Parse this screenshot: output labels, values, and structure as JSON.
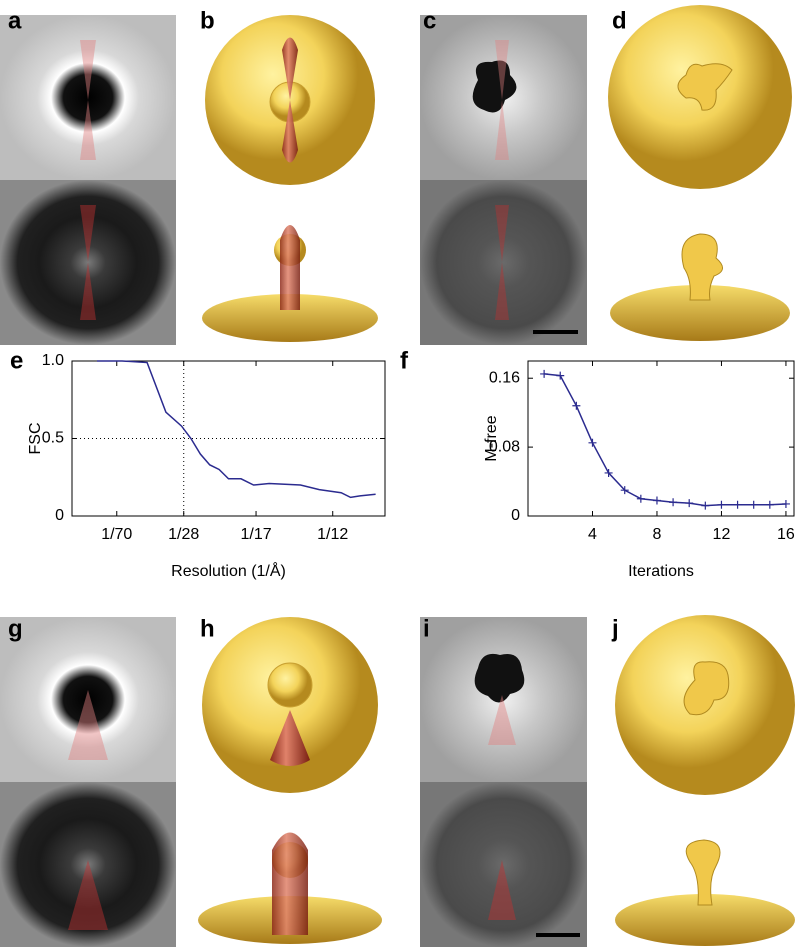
{
  "panel_labels": [
    "a",
    "b",
    "c",
    "d",
    "e",
    "f",
    "g",
    "h",
    "i",
    "j"
  ],
  "chart_data": [
    {
      "type": "line",
      "x_label": "Resolution (1/Å)",
      "y_label": "FSC",
      "xlim": [
        0,
        0.1
      ],
      "ylim": [
        0,
        1
      ],
      "xticks": [
        {
          "value": 0.0143,
          "label": "1/70"
        },
        {
          "value": 0.0357,
          "label": "1/28"
        },
        {
          "value": 0.0588,
          "label": "1/17"
        },
        {
          "value": 0.0833,
          "label": "1/12"
        }
      ],
      "yticks": [
        0,
        0.5,
        {
          "value": 1,
          "label": "1.0"
        }
      ],
      "xref": 0.0357,
      "yref": 0.5,
      "series": [
        {
          "color": "#2b2b8f",
          "x": [
            0.008,
            0.016,
            0.024,
            0.03,
            0.035,
            0.038,
            0.041,
            0.044,
            0.047,
            0.05,
            0.054,
            0.058,
            0.063,
            0.073,
            0.079,
            0.086,
            0.089,
            0.092,
            0.097
          ],
          "values": [
            1.0,
            1.0,
            0.99,
            0.67,
            0.58,
            0.5,
            0.4,
            0.33,
            0.3,
            0.24,
            0.24,
            0.2,
            0.21,
            0.2,
            0.17,
            0.15,
            0.12,
            0.13,
            0.14
          ]
        }
      ]
    },
    {
      "type": "line",
      "x_label": "Iterations",
      "y_label": "M-free",
      "marker": "+",
      "xlim": [
        0,
        16.5
      ],
      "ylim": [
        0,
        0.18
      ],
      "xticks": [
        4,
        8,
        12,
        16
      ],
      "yticks": [
        0,
        0.08,
        0.16
      ],
      "series": [
        {
          "color": "#2b2b8f",
          "x": [
            1,
            2,
            3,
            4,
            5,
            6,
            7,
            8,
            9,
            10,
            11,
            12,
            13,
            14,
            15,
            16
          ],
          "values": [
            0.165,
            0.163,
            0.128,
            0.085,
            0.05,
            0.03,
            0.02,
            0.018,
            0.016,
            0.015,
            0.012,
            0.013,
            0.013,
            0.013,
            0.013,
            0.014
          ]
        }
      ]
    }
  ]
}
